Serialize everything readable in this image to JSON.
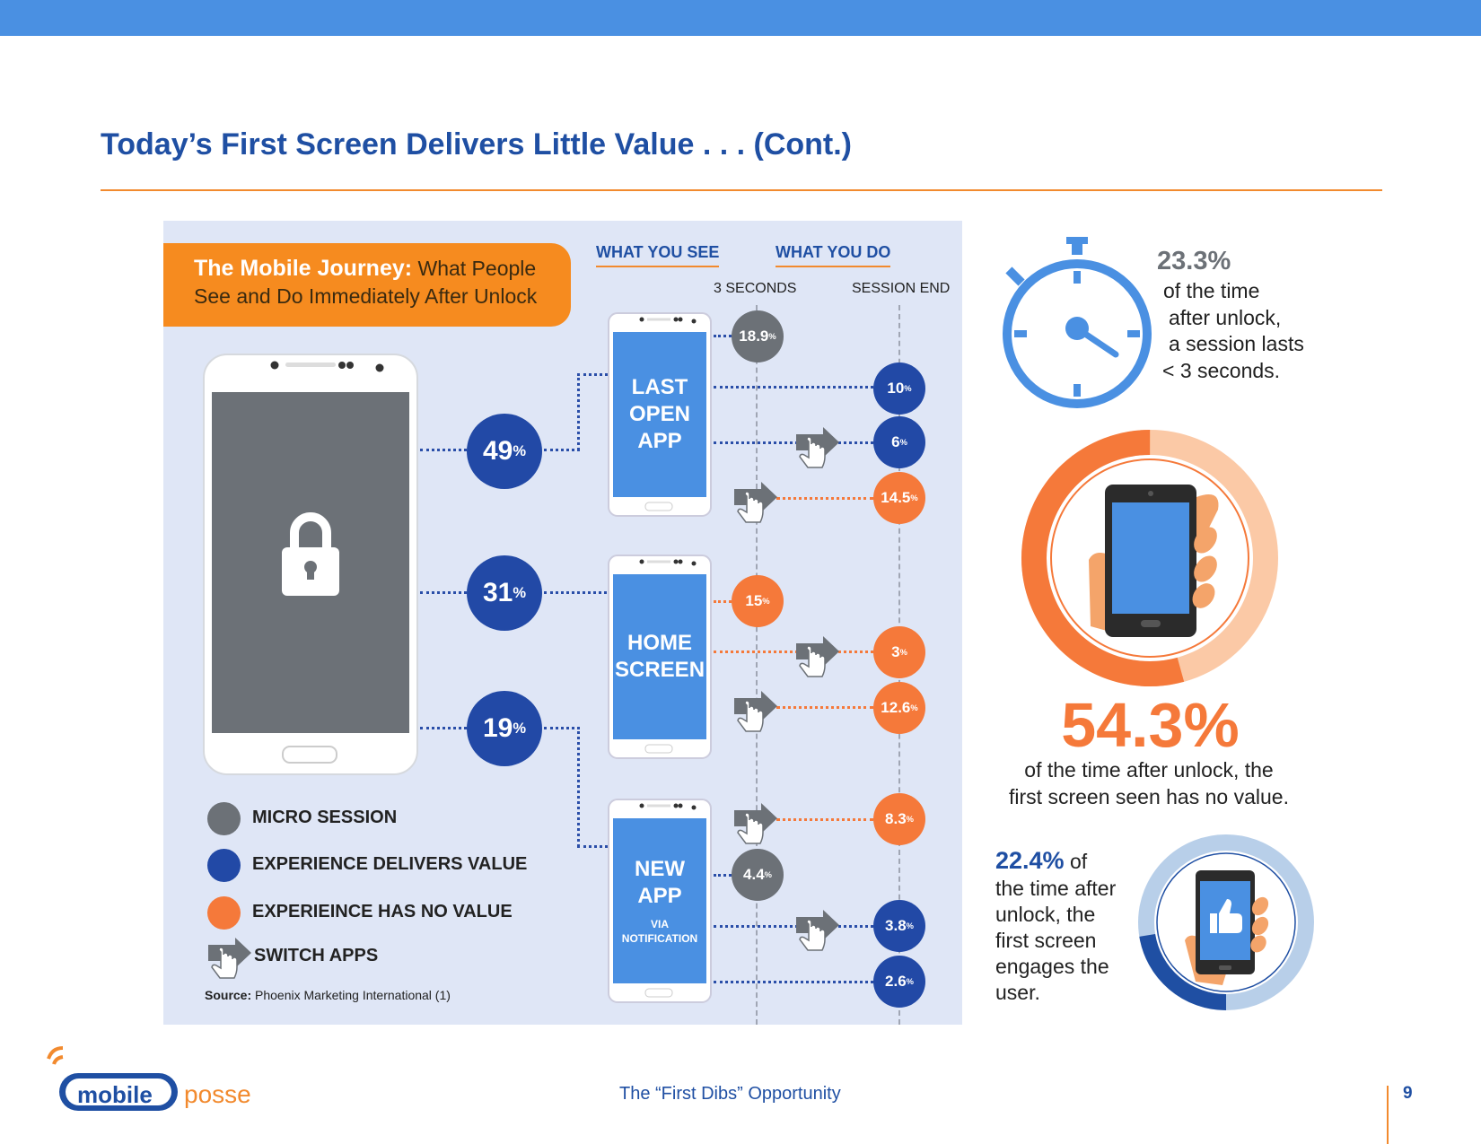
{
  "slide": {
    "title": "Today’s First Screen Delivers Little Value . . . (Cont.)",
    "footer_text": "The “First Dibs” Opportunity",
    "page_number": "9",
    "brand_colors": {
      "primary_blue": "#4a90e2",
      "navy": "#1f4fa3",
      "orange": "#f28a2e"
    }
  },
  "journey": {
    "badge_bold": "The Mobile Journey:",
    "badge_rest_line1": "What People",
    "badge_line2": "See and Do Immediately After Unlock",
    "col_see": "WHAT YOU SEE",
    "col_do": "WHAT YOU DO",
    "sub_3s": "3 SECONDS",
    "sub_end": "SESSION END",
    "splits": [
      {
        "value": "49",
        "unit": "%"
      },
      {
        "value": "31",
        "unit": "%"
      },
      {
        "value": "19",
        "unit": "%"
      }
    ],
    "screens": [
      {
        "label": "LAST OPEN APP",
        "sub": ""
      },
      {
        "label": "HOME SCREEN",
        "sub": ""
      },
      {
        "label": "NEW APP",
        "sub": "VIA NOTIFICATION"
      }
    ],
    "outcomes": {
      "micro_last": {
        "value": "18.9",
        "unit": "%"
      },
      "last_value_1": {
        "value": "10",
        "unit": "%"
      },
      "last_value_2": {
        "value": "6",
        "unit": "%"
      },
      "last_novalue": {
        "value": "14.5",
        "unit": "%"
      },
      "home_novalue_3s": {
        "value": "15",
        "unit": "%"
      },
      "home_novalue_1": {
        "value": "3",
        "unit": "%"
      },
      "home_novalue_2": {
        "value": "12.6",
        "unit": "%"
      },
      "new_novalue": {
        "value": "8.3",
        "unit": "%"
      },
      "micro_new": {
        "value": "4.4",
        "unit": "%"
      },
      "new_value_1": {
        "value": "3.8",
        "unit": "%"
      },
      "new_value_2": {
        "value": "2.6",
        "unit": "%"
      }
    },
    "legend": [
      {
        "label": "MICRO SESSION",
        "color": "#6c7177"
      },
      {
        "label": "EXPERIENCE DELIVERS VALUE",
        "color": "#2249a6"
      },
      {
        "label": "EXPERIEINCE HAS NO VALUE",
        "color": "#f5793a"
      },
      {
        "label": "SWITCH APPS",
        "icon": "switch-apps-icon"
      }
    ],
    "source_bold": "Source:",
    "source_text": "Phoenix Marketing International (1)"
  },
  "stats": {
    "stopwatch": {
      "value": "23.3%",
      "lines": [
        "of the time",
        "after unlock,",
        "a session lasts",
        "< 3 seconds."
      ]
    },
    "no_value": {
      "value": "54.3%",
      "fraction": 0.543,
      "lines": [
        "of the time after unlock, the",
        "first screen seen has no value."
      ]
    },
    "engages": {
      "value": "22.4%",
      "fraction": 0.224,
      "first_line_rest": "of",
      "lines": [
        "the time after",
        "unlock, the",
        "first screen",
        "engages the",
        "user."
      ]
    }
  },
  "logo": {
    "word1": "mobile",
    "word2": "posse"
  }
}
